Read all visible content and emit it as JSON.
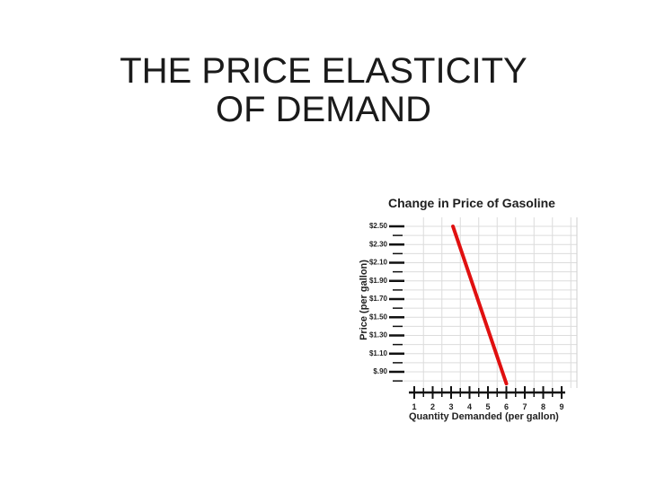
{
  "slide": {
    "title_line1": "THE PRICE ELASTICITY",
    "title_line2": "OF DEMAND"
  },
  "chart_data": {
    "type": "line",
    "title": "Change in Price of Gasoline",
    "xlabel": "Quantity Demanded (per gallon)",
    "ylabel": "Price (per gallon)",
    "x_ticks": [
      "1",
      "2",
      "3",
      "4",
      "5",
      "6",
      "7",
      "8",
      "9"
    ],
    "y_ticks": [
      "$2.50",
      "$2.30",
      "$2.10",
      "$1.90",
      "$1.70",
      "$1.50",
      "$1.30",
      "$1.10",
      "$.90"
    ],
    "y_values": [
      2.5,
      2.3,
      2.1,
      1.9,
      1.7,
      1.5,
      1.3,
      1.1,
      0.9
    ],
    "xlim": [
      0,
      9.5
    ],
    "ylim": [
      0.7,
      2.6
    ],
    "grid": true,
    "series": [
      {
        "color": "#e01010",
        "x": [
          3.1,
          6.0
        ],
        "y": [
          2.5,
          0.77
        ]
      }
    ]
  }
}
